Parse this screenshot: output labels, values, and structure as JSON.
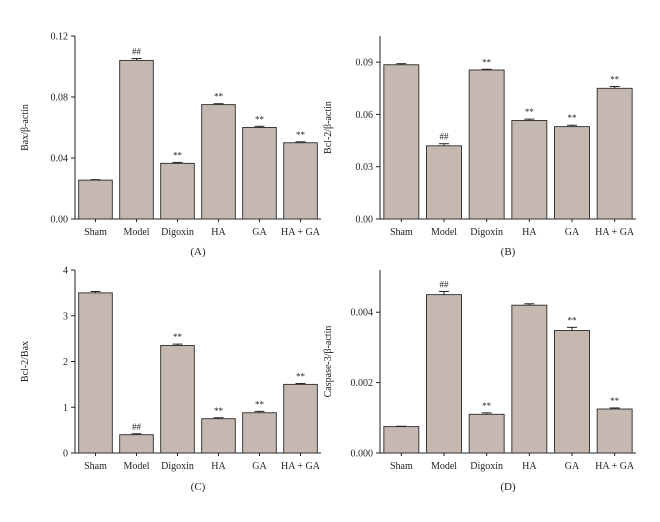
{
  "chart_data": [
    {
      "type": "bar",
      "panel": "(A)",
      "ylabel": "Bax/β-actin",
      "categories": [
        "Sham",
        "Model",
        "Digoxin",
        "HA",
        "GA",
        "HA + GA"
      ],
      "values": [
        0.0255,
        0.104,
        0.0365,
        0.075,
        0.06,
        0.05
      ],
      "errors": [
        0.0003,
        0.0012,
        0.0006,
        0.0006,
        0.0008,
        0.0006
      ],
      "annotations": [
        "",
        "##",
        "**",
        "**",
        "**",
        "**"
      ],
      "ylim": [
        0,
        0.12
      ],
      "yticks": [
        0.0,
        0.04,
        0.08,
        0.12
      ],
      "ytick_labels": [
        "0.00",
        "0.04",
        "0.08",
        "0.12"
      ]
    },
    {
      "type": "bar",
      "panel": "(B)",
      "ylabel": "Bcl-2/β-actin",
      "categories": [
        "Sham",
        "Model",
        "Digoxin",
        "HA",
        "GA",
        "HA + GA"
      ],
      "values": [
        0.0885,
        0.042,
        0.0855,
        0.0565,
        0.053,
        0.075
      ],
      "errors": [
        0.0006,
        0.0012,
        0.0004,
        0.0008,
        0.0008,
        0.001
      ],
      "annotations": [
        "",
        "##",
        "**",
        "**",
        "**",
        "**"
      ],
      "ylim": [
        0,
        0.105
      ],
      "yticks": [
        0.0,
        0.03,
        0.06,
        0.09
      ],
      "ytick_labels": [
        "0.00",
        "0.03",
        "0.06",
        "0.09"
      ]
    },
    {
      "type": "bar",
      "panel": "(C)",
      "ylabel": "Bcl-2/Bax",
      "categories": [
        "Sham",
        "Model",
        "Digoxin",
        "HA",
        "GA",
        "HA + GA"
      ],
      "values": [
        3.5,
        0.4,
        2.35,
        0.75,
        0.88,
        1.5
      ],
      "errors": [
        0.03,
        0.02,
        0.03,
        0.02,
        0.03,
        0.02
      ],
      "annotations": [
        "",
        "##",
        "**",
        "**",
        "**",
        "**"
      ],
      "ylim": [
        0,
        4
      ],
      "yticks": [
        0,
        1,
        2,
        3,
        4
      ],
      "ytick_labels": [
        "0",
        "1",
        "2",
        "3",
        "4"
      ]
    },
    {
      "type": "bar",
      "panel": "(D)",
      "ylabel": "Caspase-3/β-actin",
      "categories": [
        "Sham",
        "Model",
        "Digoxin",
        "HA",
        "GA",
        "HA + GA"
      ],
      "values": [
        0.00075,
        0.0045,
        0.0011,
        0.0042,
        0.00348,
        0.00125
      ],
      "errors": [
        1e-05,
        9e-05,
        4e-05,
        4e-05,
        9e-05,
        3e-05
      ],
      "annotations": [
        "",
        "##",
        "**",
        "",
        "**",
        "**"
      ],
      "ylim": [
        0,
        0.0052
      ],
      "yticks": [
        0.0,
        0.002,
        0.004
      ],
      "ytick_labels": [
        "0.000",
        "0.002",
        "0.004"
      ]
    }
  ]
}
